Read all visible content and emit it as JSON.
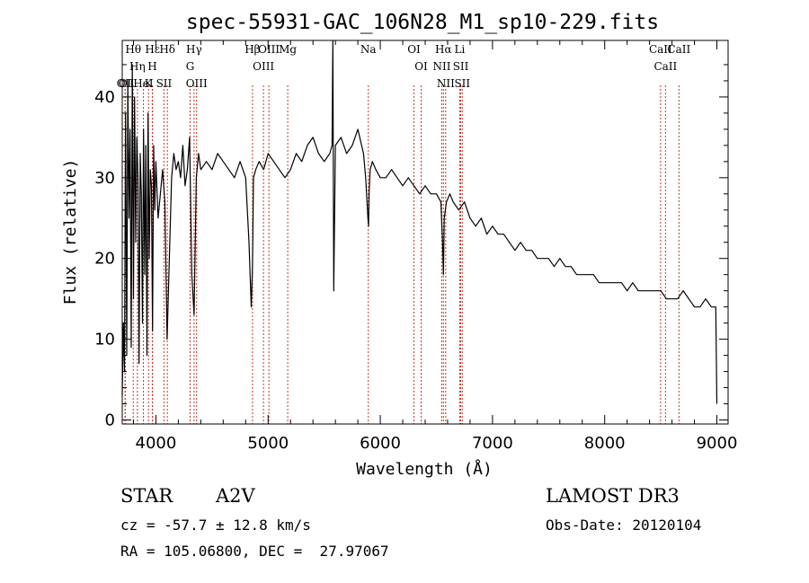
{
  "chart_data": {
    "type": "line",
    "title": "spec-55931-GAC_106N28_M1_sp10-229.fits",
    "xlabel": "Wavelength (Å)",
    "ylabel": "Flux (relative)",
    "xlim": [
      3700,
      9100
    ],
    "ylim": [
      -0.5,
      47
    ],
    "x_ticks": [
      4000,
      5000,
      6000,
      7000,
      8000,
      9000
    ],
    "y_ticks": [
      0,
      10,
      20,
      30,
      40
    ],
    "grid": false,
    "series": [
      {
        "name": "flux",
        "x": [
          3700,
          3710,
          3720,
          3730,
          3740,
          3750,
          3760,
          3770,
          3780,
          3790,
          3800,
          3810,
          3820,
          3830,
          3840,
          3850,
          3860,
          3870,
          3880,
          3890,
          3900,
          3910,
          3920,
          3930,
          3940,
          3950,
          3960,
          3970,
          3980,
          3990,
          4000,
          4020,
          4040,
          4060,
          4080,
          4100,
          4120,
          4140,
          4160,
          4180,
          4200,
          4220,
          4240,
          4260,
          4280,
          4300,
          4320,
          4340,
          4360,
          4380,
          4400,
          4450,
          4500,
          4550,
          4600,
          4650,
          4700,
          4750,
          4800,
          4830,
          4850,
          4861,
          4870,
          4890,
          4920,
          4960,
          5000,
          5050,
          5100,
          5150,
          5200,
          5250,
          5300,
          5350,
          5400,
          5450,
          5500,
          5550,
          5570,
          5577,
          5585,
          5600,
          5650,
          5700,
          5750,
          5800,
          5850,
          5870,
          5890,
          5895,
          5900,
          5910,
          5930,
          5960,
          6000,
          6050,
          6100,
          6150,
          6200,
          6250,
          6300,
          6350,
          6400,
          6450,
          6500,
          6540,
          6555,
          6563,
          6570,
          6590,
          6620,
          6650,
          6700,
          6750,
          6800,
          6850,
          6900,
          6950,
          7000,
          7050,
          7100,
          7150,
          7200,
          7250,
          7300,
          7350,
          7400,
          7450,
          7500,
          7550,
          7600,
          7650,
          7700,
          7750,
          7800,
          7850,
          7900,
          7950,
          8000,
          8050,
          8100,
          8150,
          8200,
          8250,
          8300,
          8350,
          8400,
          8450,
          8500,
          8550,
          8600,
          8650,
          8700,
          8750,
          8800,
          8850,
          8900,
          8950,
          8990,
          9000
        ],
        "values": [
          3,
          12,
          6,
          38,
          8,
          42,
          25,
          36,
          9,
          44,
          15,
          40,
          22,
          35,
          30,
          7,
          33,
          28,
          12,
          36,
          18,
          34,
          8,
          38,
          20,
          31,
          29,
          11,
          34,
          26,
          32,
          25,
          28,
          31,
          27,
          10,
          20,
          30,
          33,
          31,
          32,
          30,
          34,
          29,
          31,
          35,
          18,
          13,
          30,
          33,
          31,
          32,
          31,
          33,
          32,
          31,
          30,
          32,
          30,
          22,
          14,
          19,
          30,
          31,
          32,
          31,
          33,
          32,
          31,
          30,
          31,
          33,
          32,
          34,
          35,
          33,
          32,
          33,
          34,
          47,
          16,
          34,
          35,
          33,
          34,
          36,
          33,
          30,
          25,
          24,
          28,
          31,
          32,
          31,
          30,
          30,
          31,
          30,
          29,
          30,
          29,
          28,
          29,
          28,
          28,
          27,
          22,
          18,
          25,
          27,
          28,
          27,
          26,
          27,
          25,
          24,
          25,
          23,
          24,
          23,
          23,
          22,
          21,
          22,
          21,
          21,
          20,
          20,
          20,
          19,
          20,
          19,
          19,
          18,
          18,
          18,
          18,
          17,
          17,
          17,
          17,
          17,
          16,
          17,
          16,
          16,
          16,
          16,
          16,
          15,
          15,
          15,
          16,
          15,
          14,
          14,
          15,
          14,
          14,
          2
        ]
      }
    ],
    "annotations": [
      {
        "label": "Hα",
        "x": 6563
      },
      {
        "label": "Hβ",
        "x": 4861
      },
      {
        "label": "Hγ",
        "x": 4340
      },
      {
        "label": "Hδ",
        "x": 4102
      },
      {
        "label": "Hε",
        "x": 3970
      },
      {
        "label": "Hθ",
        "x": 3798
      },
      {
        "label": "Hη",
        "x": 3835
      },
      {
        "label": "K",
        "x": 3934
      },
      {
        "label": "H",
        "x": 3968
      },
      {
        "label": "G",
        "x": 4305
      },
      {
        "label": "Mg",
        "x": 5175
      },
      {
        "label": "Na",
        "x": 5893
      },
      {
        "label": "OII",
        "x": 3727
      },
      {
        "label": "OI",
        "x": 3725
      },
      {
        "label": "HeI",
        "x": 3888
      },
      {
        "label": "SII",
        "x": 4072
      },
      {
        "label": "OIII",
        "x": 4363
      },
      {
        "label": "OIII",
        "x": 4959
      },
      {
        "label": "OIII",
        "x": 5007
      },
      {
        "label": "OI",
        "x": 6300
      },
      {
        "label": "OI",
        "x": 6364
      },
      {
        "label": "NII",
        "x": 6548
      },
      {
        "label": "NII",
        "x": 6583
      },
      {
        "label": "Li",
        "x": 6708
      },
      {
        "label": "SII",
        "x": 6717
      },
      {
        "label": "SII",
        "x": 6731
      },
      {
        "label": "CaII",
        "x": 8498
      },
      {
        "label": "CaII",
        "x": 8542
      },
      {
        "label": "CaII",
        "x": 8662
      }
    ]
  },
  "info": {
    "object_class": "STAR",
    "subclass": "A2V",
    "survey": "LAMOST DR3",
    "redshift_line": "cz = -57.7 ± 12.8 km/s",
    "obs_date_line": "Obs-Date: 20120104",
    "coords_line": "RA = 105.06800, DEC =  27.97067"
  }
}
